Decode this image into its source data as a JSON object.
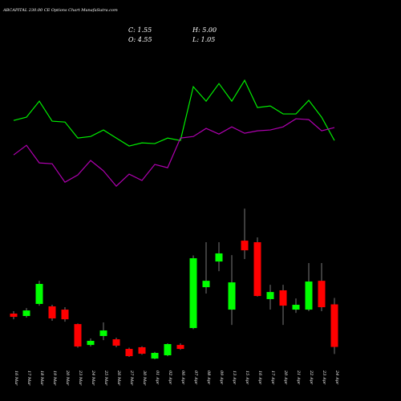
{
  "chart_data": {
    "type": "candlestick",
    "title": "ABCAPITAL 230.00 CE Options Chart MunafaSutra.com",
    "info": [
      "C: 1.55",
      "H: 5.00",
      "O: 4.55",
      "L: 1.05"
    ],
    "categories": [
      "16 Mar",
      "17 Mar",
      "18 Mar",
      "19 Mar",
      "20 Mar",
      "23 Mar",
      "24 Mar",
      "25 Mar",
      "26 Mar",
      "27 Mar",
      "30 Mar",
      "01 Apr",
      "02 Apr",
      "06 Apr",
      "07 Apr",
      "08 Apr",
      "09 Apr",
      "13 Apr",
      "15 Apr",
      "16 Apr",
      "17 Apr",
      "20 Apr",
      "21 Apr",
      "22 Apr",
      "23 Apr",
      "24 Apr"
    ],
    "open": [
      3.9,
      3.73,
      4.58,
      4.41,
      4.18,
      3.16,
      1.69,
      2.32,
      2.09,
      1.41,
      1.53,
      0.73,
      0.96,
      1.69,
      2.88,
      5.76,
      7.57,
      4.18,
      9.04,
      8.93,
      4.92,
      5.54,
      4.18,
      4.18,
      6.21,
      4.55
    ],
    "high": [
      4.07,
      4.29,
      6.21,
      4.52,
      4.35,
      3.2,
      2.15,
      3.28,
      2.2,
      1.5,
      1.6,
      1.2,
      1.8,
      1.8,
      8.0,
      8.93,
      8.93,
      8.02,
      11.3,
      9.27,
      5.93,
      5.93,
      4.97,
      7.46,
      7.46,
      5.0
    ],
    "low": [
      3.5,
      3.62,
      4.46,
      3.39,
      3.33,
      1.5,
      1.58,
      2.03,
      1.53,
      0.85,
      1.0,
      0.68,
      0.9,
      1.35,
      2.8,
      5.31,
      6.89,
      3.1,
      7.74,
      5.1,
      4.18,
      3.1,
      3.95,
      4.07,
      4.07,
      1.05
    ],
    "close": [
      3.67,
      4.12,
      5.99,
      3.56,
      3.5,
      1.58,
      1.98,
      2.71,
      1.64,
      0.9,
      1.07,
      1.13,
      1.75,
      1.41,
      7.8,
      6.21,
      8.14,
      6.1,
      8.36,
      5.14,
      5.42,
      4.46,
      4.52,
      6.16,
      4.35,
      1.55
    ],
    "up_color": "#00ff00",
    "down_color": "#ff0000",
    "series": [
      {
        "color": "#00ee00",
        "values": [
          17.51,
          17.74,
          18.87,
          17.46,
          17.4,
          16.27,
          16.38,
          16.84,
          16.27,
          15.71,
          15.93,
          15.88,
          16.27,
          16.1,
          19.89,
          18.87,
          20.11,
          18.87,
          20.34,
          18.42,
          18.53,
          17.97,
          17.97,
          18.93,
          17.74,
          16.1
        ]
      },
      {
        "color": "#b000b0",
        "values": [
          15.08,
          15.76,
          14.52,
          14.46,
          13.16,
          13.67,
          14.69,
          13.96,
          12.88,
          13.73,
          13.28,
          14.41,
          14.18,
          16.27,
          16.38,
          16.95,
          16.55,
          17.06,
          16.61,
          16.78,
          16.84,
          17.06,
          17.63,
          17.57,
          16.78,
          17.01
        ]
      }
    ],
    "ylim": [
      0,
      26
    ]
  }
}
